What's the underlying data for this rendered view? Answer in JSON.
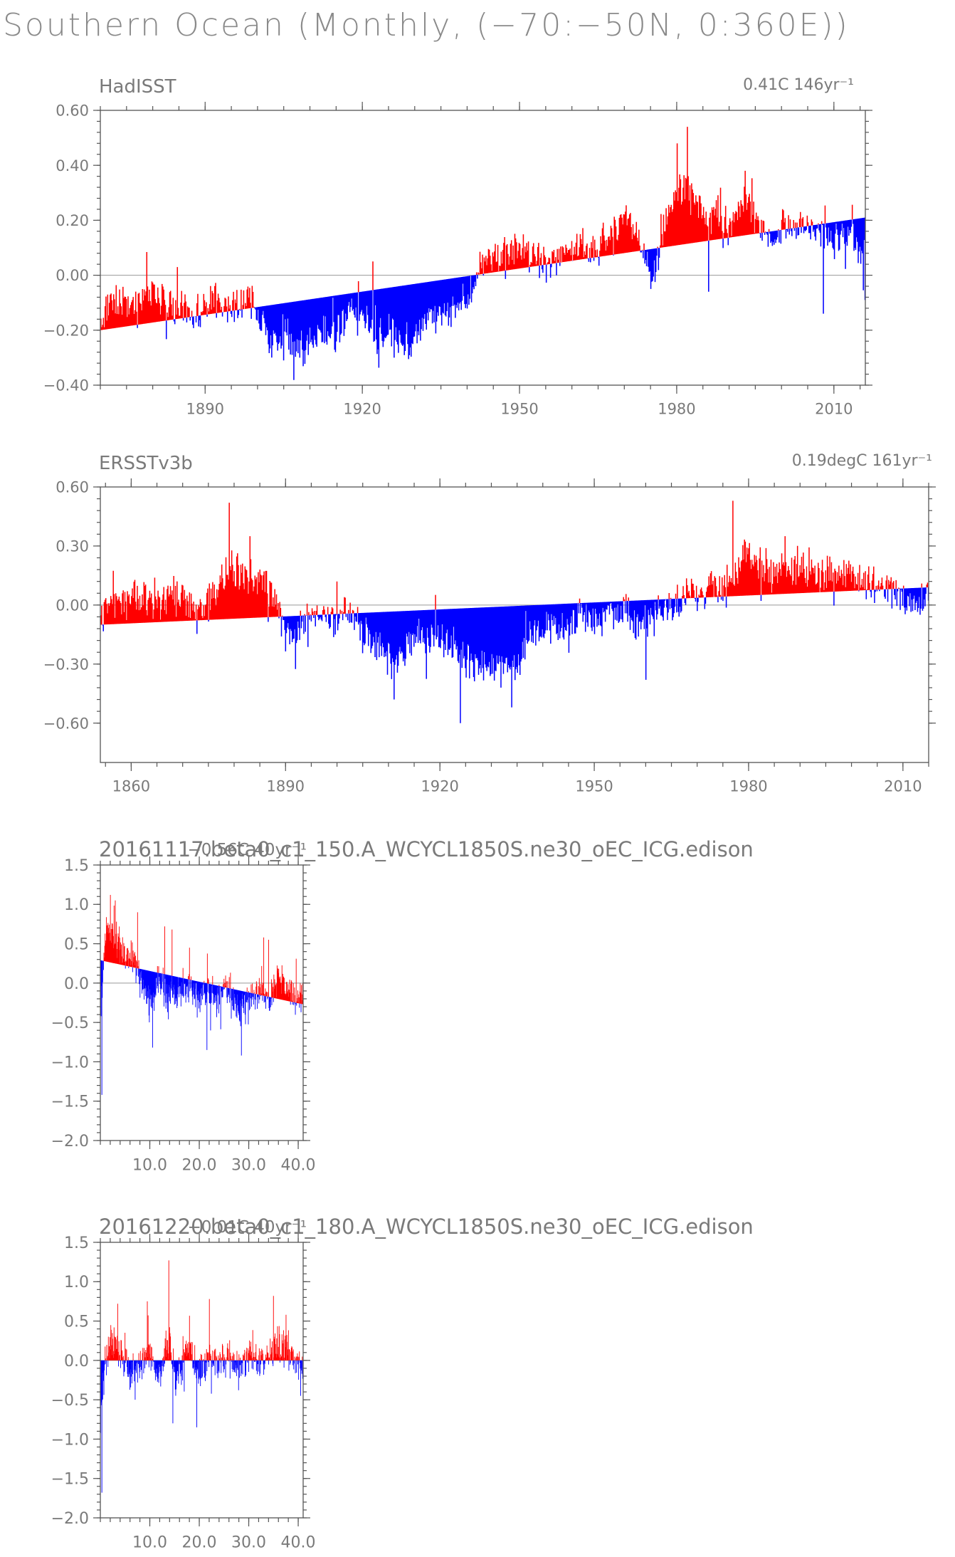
{
  "figure": {
    "title": "Southern Ocean (Monthly, (−70:−50N, 0:360E))",
    "colors": {
      "positive": "#ff0000",
      "negative": "#0000ff",
      "zero_line": "#999999",
      "axis": "#555555"
    }
  },
  "chart_data": [
    {
      "type": "bar",
      "id": "hadisst",
      "title": "HadISST",
      "trend_label": "0.41C 146yr⁻¹",
      "xlim": [
        1870,
        2016
      ],
      "ylim": [
        -0.4,
        0.6
      ],
      "xticks": [
        1890,
        1920,
        1950,
        1980,
        2010
      ],
      "xtick_labels": [
        "1890",
        "1920",
        "1950",
        "1980",
        "2010"
      ],
      "yticks": [
        -0.4,
        -0.2,
        0.0,
        0.2,
        0.4,
        0.6
      ],
      "ytick_labels": [
        "−0.40",
        "−0.20",
        "0.00",
        "0.20",
        "0.40",
        "0.60"
      ],
      "trend": {
        "start": -0.2,
        "end": 0.21
      },
      "anomaly_anchor_points": [
        [
          1870,
          -0.18
        ],
        [
          1872,
          -0.08
        ],
        [
          1876,
          -0.1
        ],
        [
          1880,
          -0.06
        ],
        [
          1885,
          -0.12
        ],
        [
          1888,
          -0.14
        ],
        [
          1891,
          -0.1
        ],
        [
          1895,
          -0.12
        ],
        [
          1898,
          -0.08
        ],
        [
          1901,
          -0.16
        ],
        [
          1903,
          -0.25
        ],
        [
          1906,
          -0.22
        ],
        [
          1909,
          -0.27
        ],
        [
          1912,
          -0.2
        ],
        [
          1915,
          -0.22
        ],
        [
          1918,
          -0.12
        ],
        [
          1920,
          -0.14
        ],
        [
          1923,
          -0.22
        ],
        [
          1926,
          -0.2
        ],
        [
          1929,
          -0.25
        ],
        [
          1932,
          -0.16
        ],
        [
          1935,
          -0.14
        ],
        [
          1938,
          -0.12
        ],
        [
          1941,
          -0.06
        ],
        [
          1943,
          0.06
        ],
        [
          1946,
          0.07
        ],
        [
          1949,
          0.1
        ],
        [
          1952,
          0.08
        ],
        [
          1955,
          0.04
        ],
        [
          1958,
          0.1
        ],
        [
          1961,
          0.12
        ],
        [
          1964,
          0.08
        ],
        [
          1967,
          0.15
        ],
        [
          1970,
          0.2
        ],
        [
          1972,
          0.18
        ],
        [
          1974,
          0.04
        ],
        [
          1976,
          0.02
        ],
        [
          1978,
          0.22
        ],
        [
          1980,
          0.3
        ],
        [
          1982,
          0.32
        ],
        [
          1984,
          0.25
        ],
        [
          1986,
          0.2
        ],
        [
          1988,
          0.22
        ],
        [
          1990,
          0.18
        ],
        [
          1993,
          0.28
        ],
        [
          1995,
          0.2
        ],
        [
          1998,
          0.12
        ],
        [
          2001,
          0.2
        ],
        [
          2004,
          0.18
        ],
        [
          2007,
          0.16
        ],
        [
          2010,
          0.12
        ],
        [
          2013,
          0.15
        ],
        [
          2016,
          0.05
        ]
      ],
      "spikes": [
        [
          1905,
          -0.31
        ],
        [
          1908,
          -0.3
        ],
        [
          1926,
          -0.3
        ],
        [
          1922,
          0.05
        ],
        [
          1980,
          0.48
        ],
        [
          1982,
          0.54
        ],
        [
          1993,
          0.38
        ],
        [
          1986,
          -0.06
        ],
        [
          2008,
          -0.14
        ],
        [
          2016,
          -0.09
        ],
        [
          1975,
          -0.05
        ]
      ]
    },
    {
      "type": "bar",
      "id": "ersstv3b",
      "title": "ERSSTv3b",
      "trend_label": "0.19degC 161yr⁻¹",
      "xlim": [
        1854,
        2015
      ],
      "ylim": [
        -0.8,
        0.6
      ],
      "xticks": [
        1860,
        1890,
        1920,
        1950,
        1980,
        2010
      ],
      "xtick_labels": [
        "1860",
        "1890",
        "1920",
        "1950",
        "1980",
        "2010"
      ],
      "yticks": [
        -0.6,
        -0.3,
        0.0,
        0.3,
        0.6
      ],
      "ytick_labels": [
        "−0.60",
        "−0.30",
        "0.00",
        "0.30",
        "0.60"
      ],
      "trend": {
        "start": -0.1,
        "end": 0.09
      },
      "anomaly_anchor_points": [
        [
          1854,
          -0.08
        ],
        [
          1856,
          0.02
        ],
        [
          1860,
          0.04
        ],
        [
          1864,
          0.02
        ],
        [
          1868,
          0.05
        ],
        [
          1871,
          0.03
        ],
        [
          1873,
          -0.05
        ],
        [
          1876,
          0.05
        ],
        [
          1879,
          0.18
        ],
        [
          1882,
          0.15
        ],
        [
          1885,
          0.12
        ],
        [
          1888,
          0.05
        ],
        [
          1890,
          -0.15
        ],
        [
          1893,
          -0.12
        ],
        [
          1896,
          -0.05
        ],
        [
          1899,
          -0.1
        ],
        [
          1902,
          -0.02
        ],
        [
          1905,
          -0.15
        ],
        [
          1908,
          -0.2
        ],
        [
          1911,
          -0.3
        ],
        [
          1914,
          -0.2
        ],
        [
          1917,
          -0.15
        ],
        [
          1920,
          -0.18
        ],
        [
          1923,
          -0.25
        ],
        [
          1926,
          -0.3
        ],
        [
          1929,
          -0.32
        ],
        [
          1932,
          -0.28
        ],
        [
          1935,
          -0.3
        ],
        [
          1938,
          -0.15
        ],
        [
          1941,
          -0.1
        ],
        [
          1944,
          -0.12
        ],
        [
          1947,
          -0.05
        ],
        [
          1950,
          -0.1
        ],
        [
          1953,
          -0.05
        ],
        [
          1956,
          -0.05
        ],
        [
          1959,
          -0.1
        ],
        [
          1962,
          -0.05
        ],
        [
          1965,
          0.0
        ],
        [
          1968,
          0.05
        ],
        [
          1971,
          0.05
        ],
        [
          1974,
          0.1
        ],
        [
          1977,
          0.15
        ],
        [
          1979,
          0.25
        ],
        [
          1982,
          0.22
        ],
        [
          1985,
          0.18
        ],
        [
          1988,
          0.2
        ],
        [
          1991,
          0.18
        ],
        [
          1994,
          0.15
        ],
        [
          1997,
          0.2
        ],
        [
          2000,
          0.15
        ],
        [
          2003,
          0.12
        ],
        [
          2006,
          0.1
        ],
        [
          2009,
          0.05
        ],
        [
          2012,
          0.0
        ],
        [
          2015,
          0.05
        ]
      ],
      "spikes": [
        [
          1879,
          0.52
        ],
        [
          1883,
          0.35
        ],
        [
          1911,
          -0.48
        ],
        [
          1924,
          -0.6
        ],
        [
          1934,
          -0.52
        ],
        [
          1977,
          0.53
        ],
        [
          1960,
          -0.38
        ],
        [
          1900,
          0.12
        ],
        [
          1987,
          0.35
        ]
      ]
    },
    {
      "type": "bar",
      "id": "run-150",
      "title": "20161117.beta0_c1_150.A_WCYCL1850S.ne30_oEC_ICG.edison",
      "trend_label": "−0.56C 40yr⁻¹",
      "xlim": [
        0,
        41
      ],
      "ylim": [
        -2.0,
        1.5
      ],
      "xticks": [
        10,
        20,
        30,
        40
      ],
      "xtick_labels": [
        "10.0",
        "20.0",
        "30.0",
        "40.0"
      ],
      "yticks": [
        -2.0,
        -1.5,
        -1.0,
        -0.5,
        0.0,
        0.5,
        1.0,
        1.5
      ],
      "ytick_labels": [
        "−2.0",
        "−1.5",
        "−1.0",
        "−0.5",
        "0.0",
        "0.5",
        "1.0",
        "1.5"
      ],
      "trend": {
        "start": 0.29,
        "end": -0.27
      },
      "anomaly_anchor_points": [
        [
          0,
          -0.6
        ],
        [
          0.5,
          0.1
        ],
        [
          1.5,
          0.7
        ],
        [
          3,
          0.6
        ],
        [
          5,
          0.35
        ],
        [
          7,
          0.3
        ],
        [
          8.5,
          -0.1
        ],
        [
          10,
          -0.25
        ],
        [
          12,
          0.05
        ],
        [
          14,
          -0.15
        ],
        [
          16,
          -0.1
        ],
        [
          18,
          -0.05
        ],
        [
          20,
          -0.25
        ],
        [
          22,
          -0.1
        ],
        [
          24,
          -0.2
        ],
        [
          26,
          -0.05
        ],
        [
          28,
          -0.35
        ],
        [
          30,
          -0.25
        ],
        [
          32,
          -0.1
        ],
        [
          34,
          -0.25
        ],
        [
          36,
          0.05
        ],
        [
          38,
          -0.05
        ],
        [
          40,
          -0.15
        ]
      ],
      "spikes": [
        [
          0.3,
          -1.42
        ],
        [
          2.0,
          1.12
        ],
        [
          3.0,
          1.05
        ],
        [
          7.5,
          0.9
        ],
        [
          10.5,
          -0.82
        ],
        [
          13,
          0.72
        ],
        [
          14.5,
          0.68
        ],
        [
          21.5,
          -0.85
        ],
        [
          28.5,
          -0.92
        ],
        [
          33,
          0.58
        ],
        [
          34,
          0.55
        ],
        [
          18,
          0.45
        ]
      ]
    },
    {
      "type": "bar",
      "id": "run-180",
      "title": "20161220.beta0_c1_180.A_WCYCL1850S.ne30_oEC_ICG.edison",
      "trend_label": "−0.01C 40yr⁻¹",
      "xlim": [
        0,
        41
      ],
      "ylim": [
        -2.0,
        1.5
      ],
      "xticks": [
        10,
        20,
        30,
        40
      ],
      "xtick_labels": [
        "10.0",
        "20.0",
        "30.0",
        "40.0"
      ],
      "yticks": [
        -2.0,
        -1.5,
        -1.0,
        -0.5,
        0.0,
        0.5,
        1.0,
        1.5
      ],
      "ytick_labels": [
        "−2.0",
        "−1.5",
        "−1.0",
        "−0.5",
        "0.0",
        "0.5",
        "1.0",
        "1.5"
      ],
      "trend": {
        "start": 0.0,
        "end": 0.0
      },
      "anomaly_anchor_points": [
        [
          0,
          -0.8
        ],
        [
          0.8,
          -0.1
        ],
        [
          2,
          0.25
        ],
        [
          4,
          0.15
        ],
        [
          6,
          -0.2
        ],
        [
          8,
          -0.1
        ],
        [
          10,
          0.1
        ],
        [
          12,
          -0.15
        ],
        [
          14,
          0.3
        ],
        [
          15,
          -0.3
        ],
        [
          16,
          -0.1
        ],
        [
          18,
          0.15
        ],
        [
          20,
          -0.2
        ],
        [
          22,
          0.1
        ],
        [
          24,
          -0.1
        ],
        [
          26,
          0.05
        ],
        [
          28,
          -0.1
        ],
        [
          30,
          0.05
        ],
        [
          32,
          -0.05
        ],
        [
          34,
          0.1
        ],
        [
          36,
          0.2
        ],
        [
          38,
          0.1
        ],
        [
          40,
          -0.1
        ]
      ],
      "spikes": [
        [
          0.3,
          -1.68
        ],
        [
          3.5,
          0.72
        ],
        [
          9.5,
          0.75
        ],
        [
          13.8,
          1.27
        ],
        [
          14.6,
          -0.8
        ],
        [
          19.5,
          -0.85
        ],
        [
          22,
          0.78
        ],
        [
          35,
          0.82
        ],
        [
          37.5,
          0.58
        ],
        [
          7,
          -0.5
        ],
        [
          40.5,
          -0.45
        ]
      ]
    }
  ]
}
